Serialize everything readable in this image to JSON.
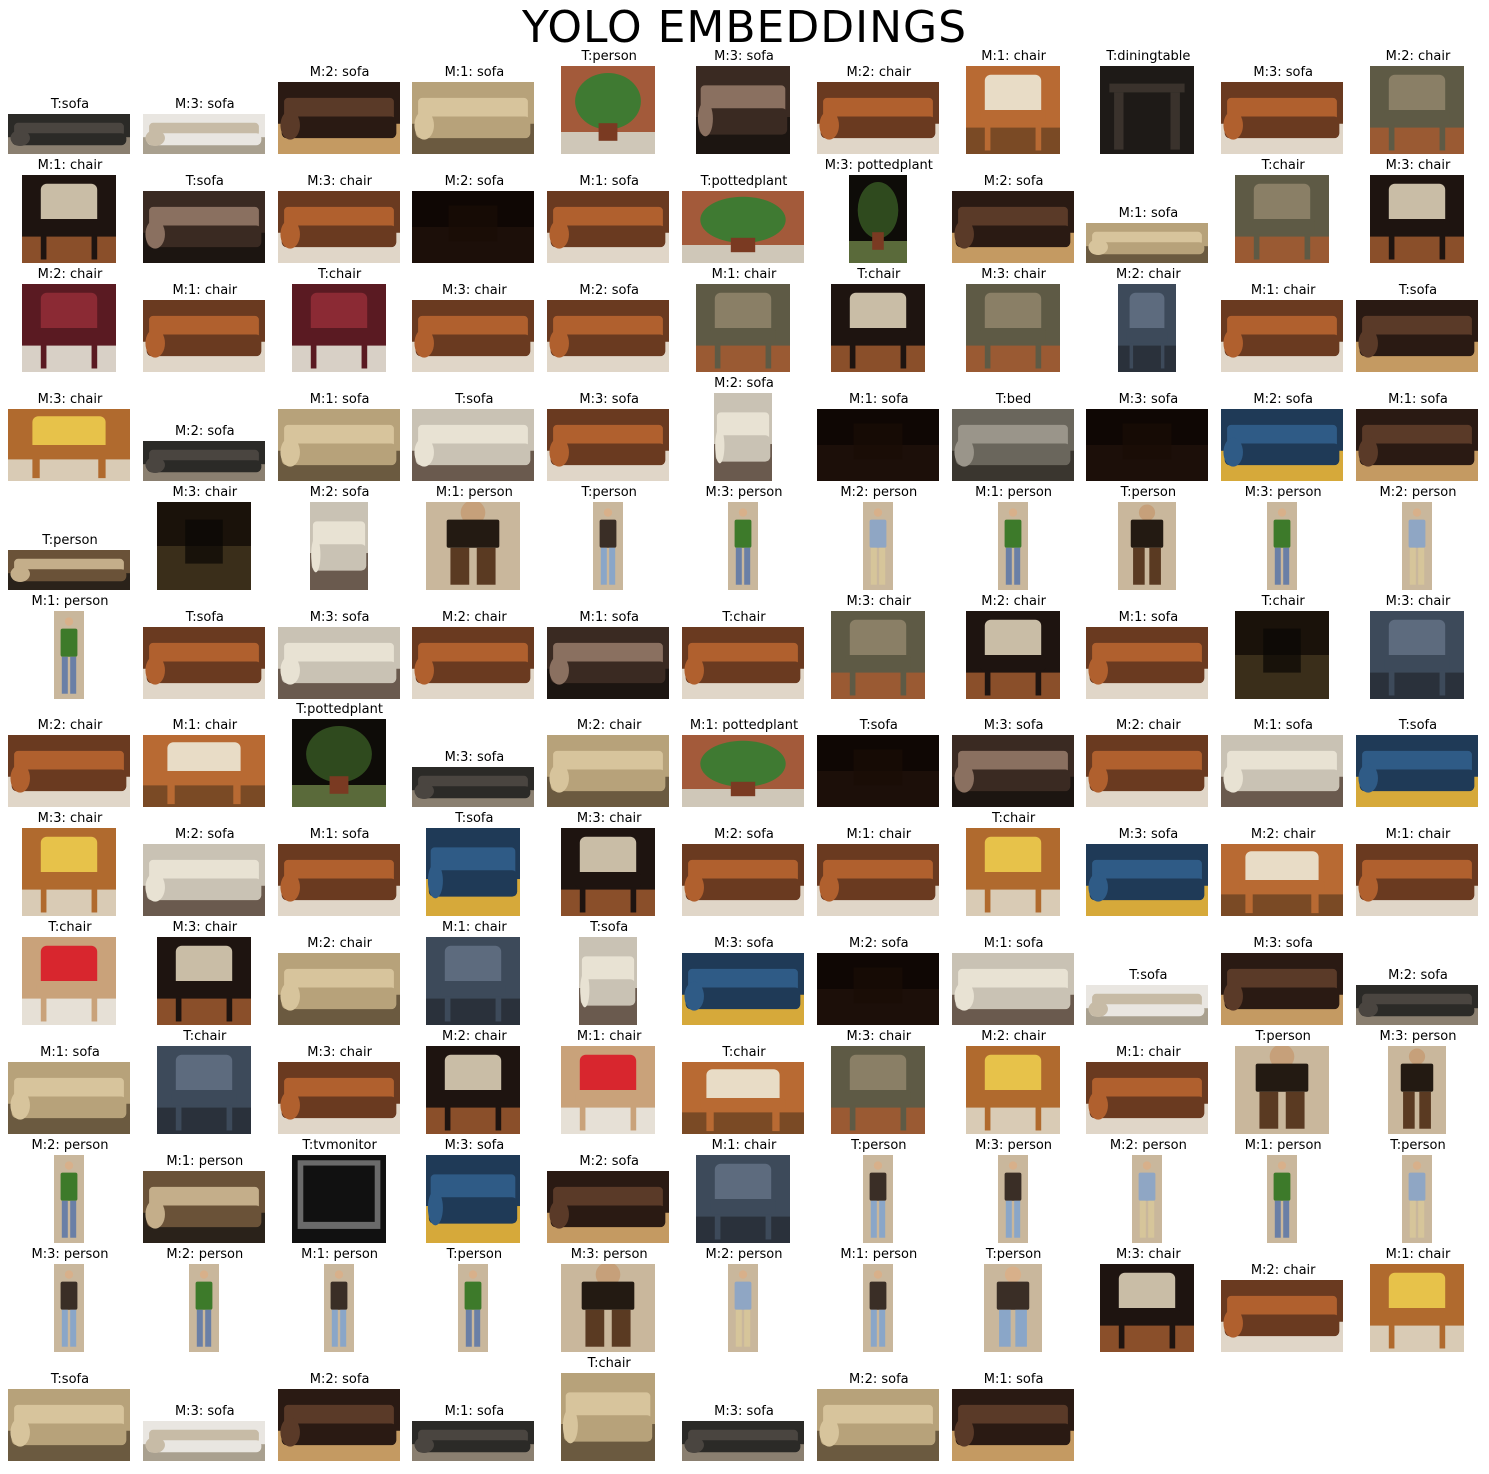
{
  "title": "YOLO EMBEDDINGS",
  "tiles": [
    {
      "label": "T:sofa",
      "kind": "sofa-dark",
      "shape": "wide"
    },
    {
      "label": "M:3: sofa",
      "kind": "sofa-white",
      "shape": "wide"
    },
    {
      "label": "M:2: sofa",
      "kind": "sofa-brown",
      "shape": "box"
    },
    {
      "label": "M:1: sofa",
      "kind": "sofa-beige",
      "shape": "box"
    },
    {
      "label": "T:person",
      "kind": "plant",
      "shape": "square"
    },
    {
      "label": "M:3: sofa",
      "kind": "sofa-pattern",
      "shape": "square"
    },
    {
      "label": "M:2: chair",
      "kind": "leather",
      "shape": "box"
    },
    {
      "label": "M:1: chair",
      "kind": "chair-wood",
      "shape": "square"
    },
    {
      "label": "T:diningtable",
      "kind": "table",
      "shape": "square"
    },
    {
      "label": "M:3: sofa",
      "kind": "leather",
      "shape": "box"
    },
    {
      "label": "M:2: chair",
      "kind": "chair-green",
      "shape": "square"
    },
    {
      "label": "M:1: chair",
      "kind": "chair-pattern",
      "shape": "square"
    },
    {
      "label": "T:sofa",
      "kind": "sofa-pattern",
      "shape": "box"
    },
    {
      "label": "M:3: chair",
      "kind": "leather",
      "shape": "box"
    },
    {
      "label": "M:2: sofa",
      "kind": "dark",
      "shape": "box"
    },
    {
      "label": "M:1: sofa",
      "kind": "leather",
      "shape": "box"
    },
    {
      "label": "T:pottedplant",
      "kind": "plant",
      "shape": "box"
    },
    {
      "label": "M:3: pottedplant",
      "kind": "plant-dark",
      "shape": "tall"
    },
    {
      "label": "M:2: sofa",
      "kind": "sofa-brown",
      "shape": "box"
    },
    {
      "label": "M:1: sofa",
      "kind": "sofa-beige",
      "shape": "wide"
    },
    {
      "label": "T:chair",
      "kind": "chair-green",
      "shape": "square"
    },
    {
      "label": "M:3: chair",
      "kind": "chair-pattern",
      "shape": "square"
    },
    {
      "label": "M:2: chair",
      "kind": "chair-red",
      "shape": "square"
    },
    {
      "label": "M:1: chair",
      "kind": "leather",
      "shape": "box"
    },
    {
      "label": "T:chair",
      "kind": "chair-red",
      "shape": "square"
    },
    {
      "label": "M:3: chair",
      "kind": "leather",
      "shape": "box"
    },
    {
      "label": "M:2: sofa",
      "kind": "leather",
      "shape": "box"
    },
    {
      "label": "M:1: chair",
      "kind": "chair-green",
      "shape": "square"
    },
    {
      "label": "T:chair",
      "kind": "chair-pattern",
      "shape": "square"
    },
    {
      "label": "M:3: chair",
      "kind": "chair-green",
      "shape": "square"
    },
    {
      "label": "M:2: chair",
      "kind": "chair-blue",
      "shape": "tall"
    },
    {
      "label": "M:1: chair",
      "kind": "leather",
      "shape": "box"
    },
    {
      "label": "T:sofa",
      "kind": "sofa-brown",
      "shape": "box"
    },
    {
      "label": "M:3: chair",
      "kind": "chair-yellow",
      "shape": "box"
    },
    {
      "label": "M:2: sofa",
      "kind": "sofa-dark",
      "shape": "wide"
    },
    {
      "label": "M:1: sofa",
      "kind": "sofa-beige",
      "shape": "box"
    },
    {
      "label": "T:sofa",
      "kind": "sofa-cream",
      "shape": "box"
    },
    {
      "label": "M:3: sofa",
      "kind": "leather",
      "shape": "box"
    },
    {
      "label": "M:2: sofa",
      "kind": "sofa-cream",
      "shape": "tall"
    },
    {
      "label": "M:1: sofa",
      "kind": "dark",
      "shape": "box"
    },
    {
      "label": "T:bed",
      "kind": "bed",
      "shape": "box"
    },
    {
      "label": "M:3: sofa",
      "kind": "dark",
      "shape": "box"
    },
    {
      "label": "M:2: sofa",
      "kind": "sofa-blue",
      "shape": "box"
    },
    {
      "label": "M:1: sofa",
      "kind": "sofa-brown",
      "shape": "box"
    },
    {
      "label": "T:person",
      "kind": "scene",
      "shape": "wide"
    },
    {
      "label": "M:3: chair",
      "kind": "dark-room",
      "shape": "square"
    },
    {
      "label": "M:2: sofa",
      "kind": "sofa-cream",
      "shape": "tall"
    },
    {
      "label": "M:1: person",
      "kind": "person-dark",
      "shape": "square"
    },
    {
      "label": "T:person",
      "kind": "person",
      "shape": "slim"
    },
    {
      "label": "M:3: person",
      "kind": "person-green",
      "shape": "slim"
    },
    {
      "label": "M:2: person",
      "kind": "person-blue",
      "shape": "slim"
    },
    {
      "label": "M:1: person",
      "kind": "person-green",
      "shape": "slim"
    },
    {
      "label": "T:person",
      "kind": "person-dark",
      "shape": "tall"
    },
    {
      "label": "M:3: person",
      "kind": "person-green",
      "shape": "slim"
    },
    {
      "label": "M:2: person",
      "kind": "person-blue",
      "shape": "slim"
    },
    {
      "label": "M:1: person",
      "kind": "person-green",
      "shape": "slim"
    },
    {
      "label": "T:sofa",
      "kind": "leather",
      "shape": "box"
    },
    {
      "label": "M:3: sofa",
      "kind": "sofa-cream",
      "shape": "box"
    },
    {
      "label": "M:2: chair",
      "kind": "leather",
      "shape": "box"
    },
    {
      "label": "M:1: sofa",
      "kind": "sofa-pattern",
      "shape": "box"
    },
    {
      "label": "T:chair",
      "kind": "leather",
      "shape": "box"
    },
    {
      "label": "M:3: chair",
      "kind": "chair-green",
      "shape": "square"
    },
    {
      "label": "M:2: chair",
      "kind": "chair-pattern",
      "shape": "square"
    },
    {
      "label": "M:1: sofa",
      "kind": "leather",
      "shape": "box"
    },
    {
      "label": "T:chair",
      "kind": "dark-room",
      "shape": "square"
    },
    {
      "label": "M:3: chair",
      "kind": "chair-blue",
      "shape": "square"
    },
    {
      "label": "M:2: chair",
      "kind": "leather",
      "shape": "box"
    },
    {
      "label": "M:1: chair",
      "kind": "chair-wood",
      "shape": "box"
    },
    {
      "label": "T:pottedplant",
      "kind": "plant-dark",
      "shape": "square"
    },
    {
      "label": "M:3: sofa",
      "kind": "sofa-dark",
      "shape": "wide"
    },
    {
      "label": "M:2: chair",
      "kind": "sofa-beige",
      "shape": "box"
    },
    {
      "label": "M:1: pottedplant",
      "kind": "plant",
      "shape": "box"
    },
    {
      "label": "T:sofa",
      "kind": "dark",
      "shape": "box"
    },
    {
      "label": "M:3: sofa",
      "kind": "sofa-pattern",
      "shape": "box"
    },
    {
      "label": "M:2: chair",
      "kind": "leather",
      "shape": "box"
    },
    {
      "label": "M:1: sofa",
      "kind": "sofa-cream",
      "shape": "box"
    },
    {
      "label": "T:sofa",
      "kind": "sofa-blue",
      "shape": "box"
    },
    {
      "label": "M:3: chair",
      "kind": "chair-yellow",
      "shape": "square"
    },
    {
      "label": "M:2: sofa",
      "kind": "sofa-cream",
      "shape": "box"
    },
    {
      "label": "M:1: sofa",
      "kind": "leather",
      "shape": "box"
    },
    {
      "label": "T:sofa",
      "kind": "sofa-blue",
      "shape": "square"
    },
    {
      "label": "M:3: chair",
      "kind": "chair-pattern",
      "shape": "square"
    },
    {
      "label": "M:2: sofa",
      "kind": "leather",
      "shape": "box"
    },
    {
      "label": "M:1: chair",
      "kind": "leather",
      "shape": "box"
    },
    {
      "label": "T:chair",
      "kind": "chair-yellow",
      "shape": "square"
    },
    {
      "label": "M:3: sofa",
      "kind": "sofa-blue",
      "shape": "box"
    },
    {
      "label": "M:2: chair",
      "kind": "chair-wood",
      "shape": "box"
    },
    {
      "label": "M:1: chair",
      "kind": "leather",
      "shape": "box"
    },
    {
      "label": "T:chair",
      "kind": "chair-office",
      "shape": "square"
    },
    {
      "label": "M:3: chair",
      "kind": "chair-pattern",
      "shape": "square"
    },
    {
      "label": "M:2: chair",
      "kind": "sofa-beige",
      "shape": "box"
    },
    {
      "label": "M:1: chair",
      "kind": "chair-blue",
      "shape": "square"
    },
    {
      "label": "T:sofa",
      "kind": "sofa-cream",
      "shape": "tall"
    },
    {
      "label": "M:3: sofa",
      "kind": "sofa-blue",
      "shape": "box"
    },
    {
      "label": "M:2: sofa",
      "kind": "dark",
      "shape": "box"
    },
    {
      "label": "M:1: sofa",
      "kind": "sofa-cream",
      "shape": "box"
    },
    {
      "label": "T:sofa",
      "kind": "sofa-white",
      "shape": "wide"
    },
    {
      "label": "M:3: sofa",
      "kind": "sofa-brown",
      "shape": "box"
    },
    {
      "label": "M:2: sofa",
      "kind": "sofa-dark",
      "shape": "wide"
    },
    {
      "label": "M:1: sofa",
      "kind": "sofa-beige",
      "shape": "box"
    },
    {
      "label": "T:chair",
      "kind": "chair-blue",
      "shape": "square"
    },
    {
      "label": "M:3: chair",
      "kind": "leather",
      "shape": "box"
    },
    {
      "label": "M:2: chair",
      "kind": "chair-pattern",
      "shape": "square"
    },
    {
      "label": "M:1: chair",
      "kind": "chair-office",
      "shape": "square"
    },
    {
      "label": "T:chair",
      "kind": "chair-wood",
      "shape": "box"
    },
    {
      "label": "M:3: chair",
      "kind": "chair-green",
      "shape": "square"
    },
    {
      "label": "M:2: chair",
      "kind": "chair-yellow",
      "shape": "square"
    },
    {
      "label": "M:1: chair",
      "kind": "leather",
      "shape": "box"
    },
    {
      "label": "T:person",
      "kind": "person-dark",
      "shape": "square"
    },
    {
      "label": "M:3: person",
      "kind": "person-dark",
      "shape": "tall"
    },
    {
      "label": "M:2: person",
      "kind": "person-green",
      "shape": "slim"
    },
    {
      "label": "M:1: person",
      "kind": "scene",
      "shape": "box"
    },
    {
      "label": "T:tvmonitor",
      "kind": "tv",
      "shape": "square"
    },
    {
      "label": "M:3: sofa",
      "kind": "sofa-blue",
      "shape": "square"
    },
    {
      "label": "M:2: sofa",
      "kind": "sofa-brown",
      "shape": "box"
    },
    {
      "label": "M:1: chair",
      "kind": "chair-blue",
      "shape": "square"
    },
    {
      "label": "T:person",
      "kind": "person",
      "shape": "slim"
    },
    {
      "label": "M:3: person",
      "kind": "person",
      "shape": "slim"
    },
    {
      "label": "M:2: person",
      "kind": "person-blue",
      "shape": "slim"
    },
    {
      "label": "M:1: person",
      "kind": "person-green",
      "shape": "slim"
    },
    {
      "label": "T:person",
      "kind": "person-blue",
      "shape": "slim"
    },
    {
      "label": "M:3: person",
      "kind": "person",
      "shape": "slim"
    },
    {
      "label": "M:2: person",
      "kind": "person-green",
      "shape": "slim"
    },
    {
      "label": "M:1: person",
      "kind": "person",
      "shape": "slim"
    },
    {
      "label": "T:person",
      "kind": "person-green",
      "shape": "slim"
    },
    {
      "label": "M:3: person",
      "kind": "person-dark",
      "shape": "square"
    },
    {
      "label": "M:2: person",
      "kind": "person-blue",
      "shape": "slim"
    },
    {
      "label": "M:1: person",
      "kind": "person",
      "shape": "slim"
    },
    {
      "label": "T:person",
      "kind": "person",
      "shape": "tall"
    },
    {
      "label": "M:3: chair",
      "kind": "chair-pattern",
      "shape": "square"
    },
    {
      "label": "M:2: chair",
      "kind": "leather",
      "shape": "box"
    },
    {
      "label": "M:1: chair",
      "kind": "chair-yellow",
      "shape": "square"
    },
    {
      "label": "T:sofa",
      "kind": "sofa-beige",
      "shape": "box"
    },
    {
      "label": "M:3: sofa",
      "kind": "sofa-white",
      "shape": "wide"
    },
    {
      "label": "M:2: sofa",
      "kind": "sofa-brown",
      "shape": "box"
    },
    {
      "label": "M:1: sofa",
      "kind": "sofa-dark",
      "shape": "wide"
    },
    {
      "label": "T:chair",
      "kind": "sofa-beige",
      "shape": "square"
    },
    {
      "label": "M:3: sofa",
      "kind": "sofa-dark",
      "shape": "wide"
    },
    {
      "label": "M:2: sofa",
      "kind": "sofa-beige",
      "shape": "box"
    },
    {
      "label": "M:1: sofa",
      "kind": "sofa-brown",
      "shape": "box"
    }
  ]
}
